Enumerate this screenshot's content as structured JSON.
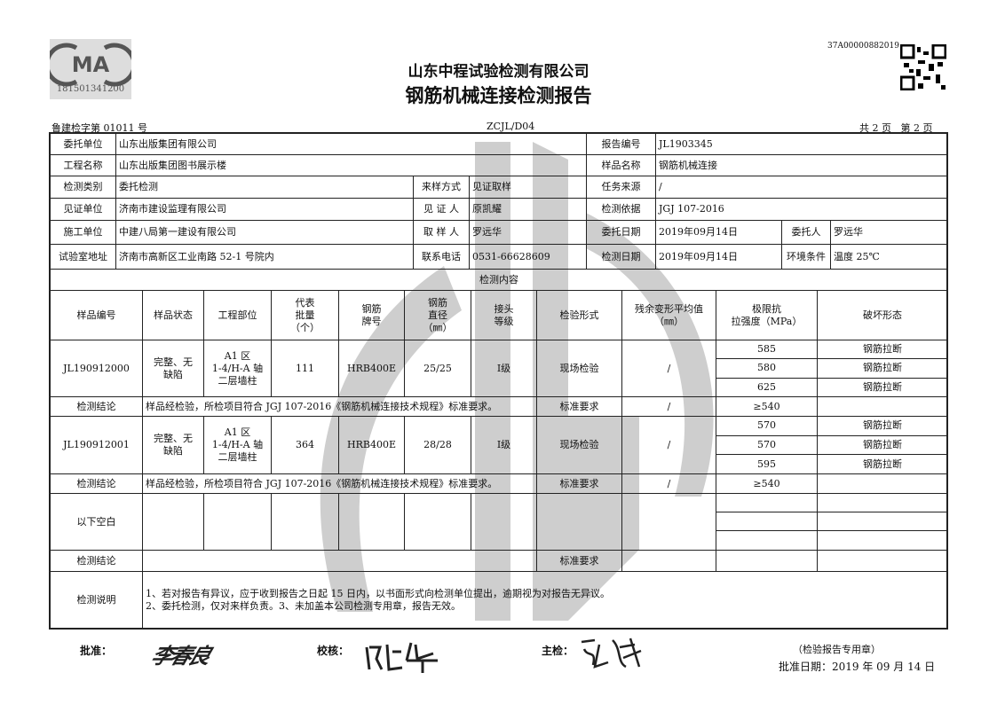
{
  "header": {
    "cma_logo_text": "MA",
    "cma_number": "181501341200",
    "qr_code_id": "37A00000882019",
    "company": "山东中程试验检测有限公司",
    "report_title": "钢筋机械连接检测报告",
    "license_no": "鲁建检字第 01011 号",
    "form_code": "ZCJL/D04",
    "page_info": "共 2 页   第 2 页"
  },
  "info": {
    "client_label": "委托单位",
    "client": "山东出版集团有限公司",
    "report_no_label": "报告编号",
    "report_no": "JL1903345",
    "project_label": "工程名称",
    "project": "山东出版集团图书展示楼",
    "sample_name_label": "样品名称",
    "sample_name": "钢筋机械连接",
    "test_type_label": "检测类别",
    "test_type": "委托检测",
    "sampling_method_label": "来样方式",
    "sampling_method": "见证取样",
    "task_source_label": "任务来源",
    "task_source": "/",
    "witness_unit_label": "见证单位",
    "witness_unit": "济南市建设监理有限公司",
    "witness_label": "见 证 人",
    "witness": "原凯耀",
    "basis_label": "检测依据",
    "basis": "JGJ 107-2016",
    "constructor_label": "施工单位",
    "constructor": "中建八局第一建设有限公司",
    "sampler_label": "取 样 人",
    "sampler": "罗远华",
    "commission_date_label": "委托日期",
    "commission_date": "2019年09月14日",
    "commissioner_label": "委托人",
    "commissioner": "罗远华",
    "lab_address_label": "试验室地址",
    "lab_address": "济南市高新区工业南路 52-1 号院内",
    "phone_label": "联系电话",
    "phone": "0531-66628609",
    "test_date_label": "检测日期",
    "test_date": "2019年09月14日",
    "env_label": "环境条件",
    "env": "温度 25℃",
    "content_label": "检测内容"
  },
  "columns": [
    "样品编号",
    "样品状态",
    "工程部位",
    "代表\n批量\n（个）",
    "钢筋\n牌号",
    "钢筋\n直径\n（㎜）",
    "接头\n等级",
    "检验形式",
    "残余变形平均值\n（㎜）",
    "极限抗\n拉强度（MPa）",
    "破坏形态"
  ],
  "samples": [
    {
      "id": "JL190912000",
      "state": "完整、无\n缺陷",
      "location": "A1 区\n1-4/H-A 轴\n二层墙柱",
      "batch": "111",
      "grade": "HRB400E",
      "diameter": "25/25",
      "level": "Ⅰ级",
      "form": "现场检验",
      "residual": "/",
      "strength": [
        "585",
        "580",
        "625"
      ],
      "failure": [
        "钢筋拉断",
        "钢筋拉断",
        "钢筋拉断"
      ],
      "conclusion_label": "检测结论",
      "conclusion": "样品经检验，所检项目符合 JGJ 107-2016《钢筋机械连接技术规程》标准要求。",
      "std_label": "标准要求",
      "std_residual": "/",
      "std_strength": "≥540"
    },
    {
      "id": "JL190912001",
      "state": "完整、无\n缺陷",
      "location": "A1 区\n1-4/H-A 轴\n二层墙柱",
      "batch": "364",
      "grade": "HRB400E",
      "diameter": "28/28",
      "level": "Ⅰ级",
      "form": "现场检验",
      "residual": "/",
      "strength": [
        "570",
        "570",
        "595"
      ],
      "failure": [
        "钢筋拉断",
        "钢筋拉断",
        "钢筋拉断"
      ],
      "conclusion_label": "检测结论",
      "conclusion": "样品经检验，所检项目符合 JGJ 107-2016《钢筋机械连接技术规程》标准要求。",
      "std_label": "标准要求",
      "std_residual": "/",
      "std_strength": "≥540"
    }
  ],
  "blank": {
    "label": "以下空白",
    "conclusion_label": "检测结论",
    "std_label": "标准要求"
  },
  "notes": {
    "label": "检测说明",
    "text": "1、若对报告有异议，应于收到报告之日起 15 日内，以书面形式向检测单位提出，逾期视为对报告无异议。\n2、委托检测，仅对来样负责。3、未加盖本公司检测专用章，报告无效。"
  },
  "footer": {
    "approve_label": "批准：",
    "approve_signature": "李春良",
    "check_label": "校核：",
    "check_signature": "陆华",
    "main_label": "主检：",
    "main_signature": "张斌",
    "seal_note": "（检验报告专用章）",
    "approve_date": "批准日期：2019 年 09 月 14 日"
  },
  "colors": {
    "border": "#222222",
    "watermark": "#c8c8c8",
    "logo": "#555555"
  }
}
